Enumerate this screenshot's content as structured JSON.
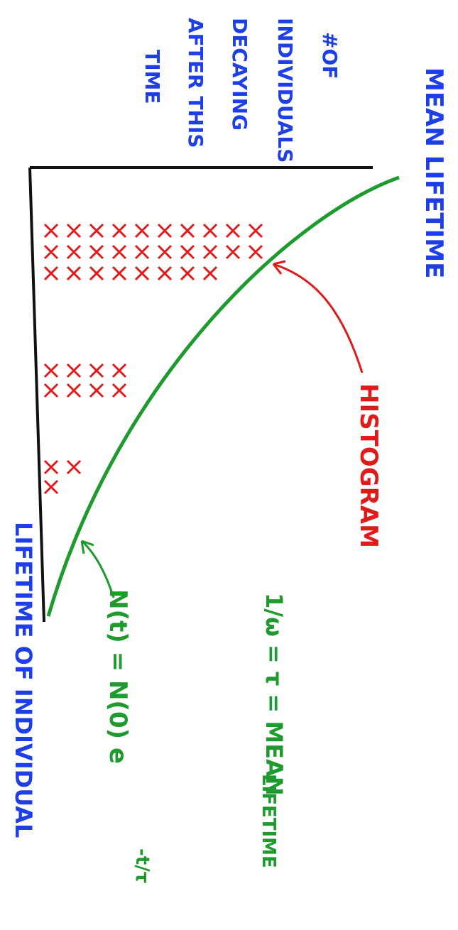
{
  "title": "MEAN LIFETIME",
  "y_axis_label": [
    "#OF",
    "INDIVIDUALS",
    "DECAYING",
    "AFTER THIS",
    "TIME"
  ],
  "x_axis_label": "LIFETIME OF INDIVIDUAL",
  "histogram_label": "HISTOGRAM",
  "mean_lifetime_note": [
    "1/ω = τ = MEAN",
    "LIFETIME"
  ],
  "curve_formula": {
    "base": "N(t) = N(0) e",
    "exponent": "-t/τ"
  }
}
